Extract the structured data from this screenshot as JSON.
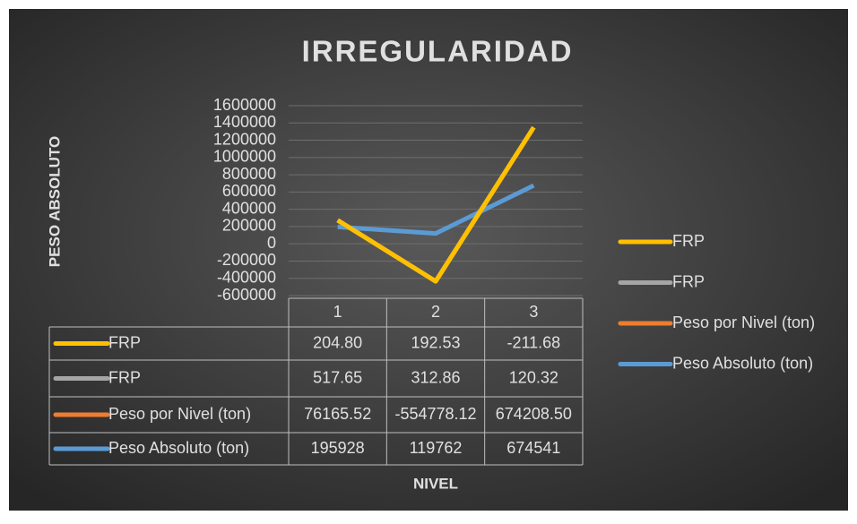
{
  "chart_data": {
    "type": "line",
    "stacked": true,
    "title": "IRREGULARIDAD",
    "y_label": "PESO ABSOLUTO",
    "x_label": "NIVEL",
    "categories": [
      "1",
      "2",
      "3"
    ],
    "ylim": [
      -600000,
      1600000
    ],
    "yticks": [
      -600000,
      -400000,
      -200000,
      0,
      200000,
      400000,
      600000,
      800000,
      1000000,
      1200000,
      1400000,
      1600000
    ],
    "grid": true,
    "legend": "right",
    "series": [
      {
        "name": "FRP",
        "color": "#ffc000",
        "values": [
          204.8,
          192.53,
          -211.68
        ],
        "value_labels": [
          "204.80",
          "192.53",
          "-211.68"
        ]
      },
      {
        "name": "FRP",
        "color": "#a5a5a5",
        "values": [
          517.65,
          312.86,
          120.32
        ],
        "value_labels": [
          "517.65",
          "312.86",
          "120.32"
        ]
      },
      {
        "name": "Peso por Nivel (ton)",
        "color": "#ed7d31",
        "values": [
          76165.52,
          -554778.12,
          674208.5
        ],
        "value_labels": [
          "76165.52",
          "-554778.12",
          "674208.50"
        ]
      },
      {
        "name": "Peso Absoluto (ton)",
        "color": "#5b9bd5",
        "values": [
          195928,
          119762,
          674541
        ]
      }
    ]
  }
}
